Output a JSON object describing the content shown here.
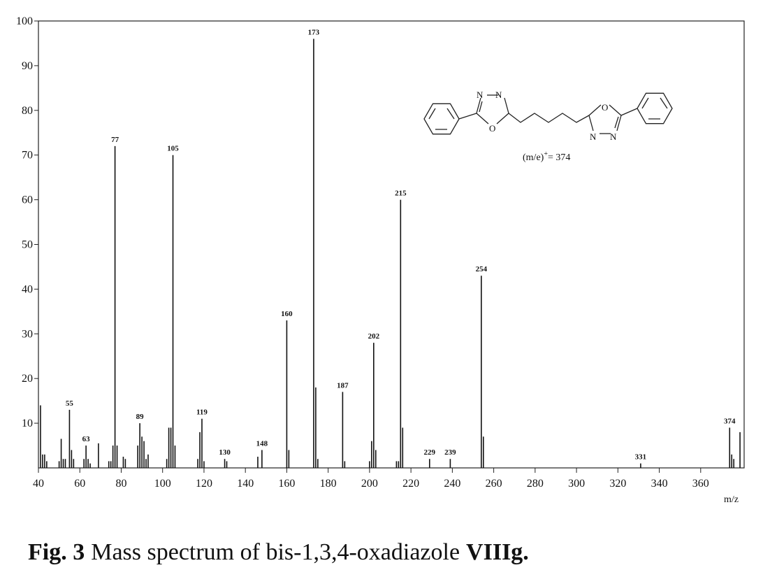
{
  "chart_data": {
    "type": "stick",
    "x_label": "m/z",
    "x": [
      55,
      63,
      77,
      89,
      105,
      119,
      130,
      148,
      160,
      173,
      187,
      202,
      215,
      229,
      239,
      254,
      331,
      374
    ],
    "values": [
      13,
      5,
      72,
      10,
      70,
      11,
      2,
      4,
      33,
      96,
      17,
      28,
      60,
      2,
      2,
      43,
      1,
      9
    ],
    "minor_x": [
      41,
      42,
      43,
      44,
      50,
      51,
      52,
      53,
      56,
      57,
      62,
      64,
      65,
      69,
      74,
      75,
      76,
      78,
      81,
      82,
      88,
      90,
      91,
      92,
      93,
      102,
      103,
      104,
      106,
      117,
      118,
      120,
      131,
      146,
      161,
      174,
      175,
      188,
      200,
      201,
      203,
      213,
      214,
      216,
      255,
      375,
      376,
      379
    ],
    "minor_values": [
      14,
      3,
      3,
      1.5,
      1.5,
      6.5,
      2,
      2,
      4,
      2,
      2,
      2,
      1,
      5.5,
      1.5,
      1.5,
      5,
      5,
      2.5,
      2,
      5,
      7,
      6,
      2,
      3,
      2,
      9,
      9,
      5,
      2,
      8,
      1.5,
      1.5,
      2.5,
      4,
      18,
      2,
      1.5,
      1.5,
      6,
      4,
      1.5,
      1.5,
      9,
      7,
      3,
      2,
      8
    ],
    "color": "#111111",
    "xlim": [
      40,
      381
    ],
    "ylim": [
      0,
      100
    ],
    "xticks": [
      40,
      60,
      80,
      100,
      120,
      140,
      160,
      180,
      200,
      220,
      240,
      260,
      280,
      300,
      320,
      340,
      360
    ],
    "yticks": [
      10,
      20,
      30,
      40,
      50,
      60,
      70,
      80,
      90,
      100
    ],
    "annotation": {
      "prefix": "(m/e)",
      "sup": "+",
      "suffix": "= 374"
    },
    "caption": {
      "label": "Fig. 3",
      "text": "Mass spectrum of bis-1,3,4-oxadiazole",
      "compound": "VIIIg."
    }
  }
}
